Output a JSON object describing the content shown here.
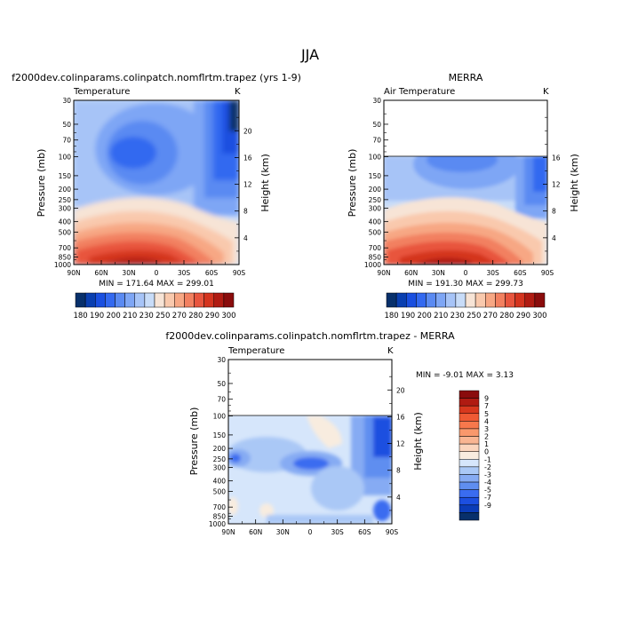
{
  "figure": {
    "title": "JJA",
    "colors": {
      "zone_white": "#ffffff",
      "frame": "#000000"
    }
  },
  "panels": [
    {
      "id": "model",
      "title": "f2000dev.colinparams.colinpatch.nomflrtm.trapez (yrs 1-9)",
      "variable": "Temperature",
      "unit": "K",
      "stats": "MIN = 171.64   MAX = 299.01",
      "ylabel": "Pressure (mb)",
      "y2label": "Height (km)",
      "data_top_hpa": 30
    },
    {
      "id": "obs",
      "title": "MERRA",
      "variable": "Air Temperature",
      "unit": "K",
      "stats": "MIN = 191.30   MAX = 299.73",
      "ylabel": "Pressure (mb)",
      "y2label": "Height (km)",
      "data_top_hpa": 100
    },
    {
      "id": "diff",
      "title": "f2000dev.colinparams.colinpatch.nomflrtm.trapez - MERRA",
      "variable": "Temperature",
      "unit": "K",
      "stats": "MIN =   -9.01   MAX =    3.13",
      "ylabel": "Pressure (mb)",
      "y2label": "Height (km)",
      "data_top_hpa": 100
    }
  ],
  "colorbars": {
    "temperature": {
      "orientation": "horizontal",
      "labels": [
        "180",
        "190",
        "200",
        "210",
        "230",
        "250",
        "270",
        "280",
        "290",
        "300"
      ],
      "colors": [
        "#08306b",
        "#0a3fb0",
        "#1a4fe0",
        "#3369f0",
        "#5a8af2",
        "#7ea6f5",
        "#a7c4f7",
        "#c8dcf8",
        "#f7e4d6",
        "#f9c9ad",
        "#f7a784",
        "#f28060",
        "#e8553e",
        "#d4341f",
        "#b01b12",
        "#8a0c0c"
      ]
    },
    "difference": {
      "orientation": "vertical",
      "labels_top_to_bottom": [
        "9",
        "7",
        "5",
        "4",
        "3",
        "2",
        "1",
        "0",
        "-1",
        "-2",
        "-3",
        "-4",
        "-5",
        "-7",
        "-9"
      ],
      "colors_top_to_bottom": [
        "#8a0c0c",
        "#b01b12",
        "#d8381e",
        "#ef5a34",
        "#f7784c",
        "#f9986c",
        "#f9b592",
        "#fbd5bd",
        "#f8ecdf",
        "#d6e6fb",
        "#aac8f6",
        "#86abf3",
        "#5f8ef0",
        "#3a6cf0",
        "#1c4fe0",
        "#0b3cb8",
        "#08306b"
      ]
    }
  },
  "chart_data": [
    {
      "type": "heatmap",
      "panel": "model",
      "title": "Temperature",
      "xlabel": "",
      "ylabel": "Pressure (mb)",
      "y2label": "Height (km)",
      "x_ticks": [
        "90N",
        "60N",
        "30N",
        "0",
        "30S",
        "60S",
        "90S"
      ],
      "x_values": [
        90,
        60,
        30,
        0,
        -30,
        -60,
        -90
      ],
      "y_ticks": [
        "30",
        "50",
        "70",
        "100",
        "150",
        "200",
        "250",
        "300",
        "400",
        "500",
        "700",
        "850",
        "1000"
      ],
      "y_values": [
        30,
        50,
        70,
        100,
        150,
        200,
        250,
        300,
        400,
        500,
        700,
        850,
        1000
      ],
      "y2_ticks": [
        "20",
        "16",
        "12",
        "8",
        "4"
      ],
      "y2_values": [
        20,
        16,
        12,
        8,
        4
      ],
      "xlim": [
        90,
        -90
      ],
      "ylim_hpa": [
        1000,
        30
      ],
      "value_range": [
        171.64,
        299.01
      ],
      "units": "K"
    },
    {
      "type": "heatmap",
      "panel": "obs",
      "title": "Air Temperature",
      "xlabel": "",
      "ylabel": "Pressure (mb)",
      "y2label": "Height (km)",
      "x_ticks": [
        "90N",
        "60N",
        "30N",
        "0",
        "30S",
        "60S",
        "90S"
      ],
      "x_values": [
        90,
        60,
        30,
        0,
        -30,
        -60,
        -90
      ],
      "y_ticks": [
        "30",
        "50",
        "70",
        "100",
        "150",
        "200",
        "250",
        "300",
        "400",
        "500",
        "700",
        "850",
        "1000"
      ],
      "y_values": [
        30,
        50,
        70,
        100,
        150,
        200,
        250,
        300,
        400,
        500,
        700,
        850,
        1000
      ],
      "y2_ticks": [
        "16",
        "12",
        "8",
        "4"
      ],
      "y2_values": [
        16,
        12,
        8,
        4
      ],
      "xlim": [
        90,
        -90
      ],
      "ylim_hpa": [
        1000,
        30
      ],
      "value_range": [
        191.3,
        299.73
      ],
      "units": "K"
    },
    {
      "type": "heatmap",
      "panel": "diff",
      "title": "Temperature",
      "xlabel": "",
      "ylabel": "Pressure (mb)",
      "y2label": "Height (km)",
      "x_ticks": [
        "90N",
        "60N",
        "30N",
        "0",
        "30S",
        "60S",
        "90S"
      ],
      "x_values": [
        90,
        60,
        30,
        0,
        -30,
        -60,
        -90
      ],
      "y_ticks": [
        "30",
        "50",
        "70",
        "100",
        "150",
        "200",
        "250",
        "300",
        "400",
        "500",
        "700",
        "850",
        "1000"
      ],
      "y_values": [
        30,
        50,
        70,
        100,
        150,
        200,
        250,
        300,
        400,
        500,
        700,
        850,
        1000
      ],
      "y2_ticks": [
        "20",
        "16",
        "12",
        "8",
        "4"
      ],
      "y2_values": [
        20,
        16,
        12,
        8,
        4
      ],
      "xlim": [
        90,
        -90
      ],
      "ylim_hpa": [
        1000,
        30
      ],
      "value_range": [
        -9.01,
        3.13
      ],
      "units": "K"
    }
  ]
}
